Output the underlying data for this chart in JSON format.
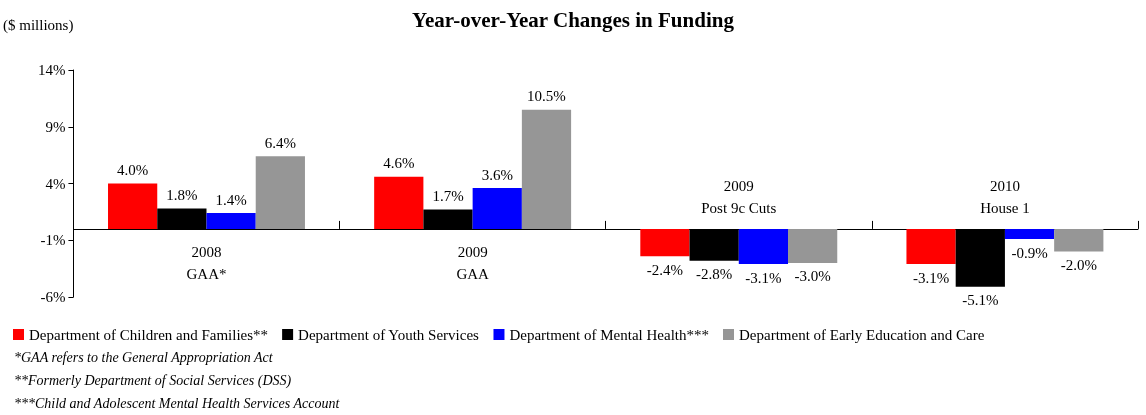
{
  "chart_data": {
    "type": "bar",
    "title": "Year-over-Year Changes in Funding",
    "ylabel": "($ millions)",
    "categories": [
      "2008\nGAA*",
      "2009\nGAA",
      "2009\nPost 9c Cuts",
      "2010\nHouse 1"
    ],
    "series": [
      {
        "name": "Department of Children and Families**",
        "color": "#ff0000",
        "values": [
          4.0,
          4.6,
          -2.4,
          -3.1
        ],
        "value_labels": [
          "4.0%",
          "4.6%",
          "-2.4%",
          "-3.1%"
        ]
      },
      {
        "name": "Department of Youth Services",
        "color": "#000000",
        "values": [
          1.8,
          1.7,
          -2.8,
          -5.1
        ],
        "value_labels": [
          "1.8%",
          "1.7%",
          "-2.8%",
          "-5.1%"
        ]
      },
      {
        "name": "Department of Mental Health***",
        "color": "#0000ff",
        "values": [
          1.4,
          3.6,
          -3.1,
          -0.9
        ],
        "value_labels": [
          "1.4%",
          "3.6%",
          "-3.1%",
          "-0.9%"
        ]
      },
      {
        "name": "Department of Early Education and Care",
        "color": "#969696",
        "values": [
          6.4,
          10.5,
          -3.0,
          -2.0
        ],
        "value_labels": [
          "6.4%",
          "10.5%",
          "-3.0%",
          "-2.0%"
        ]
      }
    ],
    "ylim": [
      -6,
      14
    ],
    "yticks": [
      {
        "value": -6,
        "label": "-6%"
      },
      {
        "value": -1,
        "label": "-1%"
      },
      {
        "value": 4,
        "label": "4%"
      },
      {
        "value": 9,
        "label": "9%"
      },
      {
        "value": 14,
        "label": "14%"
      }
    ],
    "grid": false,
    "legend": "bottom left",
    "annotations": [
      "*GAA refers to the General Appropriation Act",
      "**Formerly Department of Social Services (DSS)",
      "***Child and Adolescent Mental Health Services Account"
    ]
  }
}
